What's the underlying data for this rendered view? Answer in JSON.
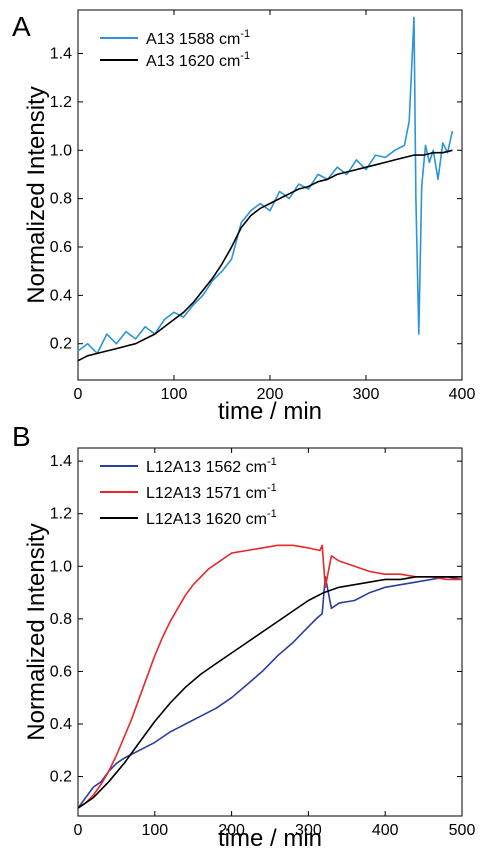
{
  "chart_data": [
    {
      "panel": "A",
      "type": "line",
      "xlabel": "time / min",
      "ylabel": "Normalized Intensity",
      "xlim": [
        0,
        400
      ],
      "ylim": [
        0.05,
        1.58
      ],
      "xticks": [
        0,
        100,
        200,
        300,
        400
      ],
      "yticks": [
        0.2,
        0.4,
        0.6,
        0.8,
        1.0,
        1.2,
        1.4
      ],
      "ytick_labels": [
        "0.2",
        "0.4",
        "0.6",
        "0.8",
        "1.0",
        "1.2",
        "1.4"
      ],
      "legend_placement": "top-left",
      "series": [
        {
          "name": "A13 1588 cm",
          "name_sup": "-1",
          "color": "#2b95d6",
          "x": [
            0,
            10,
            20,
            30,
            40,
            50,
            60,
            70,
            80,
            90,
            100,
            110,
            120,
            130,
            140,
            150,
            160,
            170,
            180,
            190,
            200,
            210,
            220,
            230,
            240,
            250,
            260,
            270,
            280,
            290,
            300,
            310,
            320,
            330,
            340,
            345,
            350,
            352,
            355,
            358,
            362,
            366,
            370,
            375,
            380,
            385,
            390
          ],
          "y": [
            0.17,
            0.2,
            0.16,
            0.24,
            0.2,
            0.25,
            0.22,
            0.27,
            0.24,
            0.3,
            0.33,
            0.31,
            0.36,
            0.4,
            0.46,
            0.5,
            0.55,
            0.7,
            0.75,
            0.78,
            0.75,
            0.83,
            0.8,
            0.86,
            0.84,
            0.9,
            0.88,
            0.93,
            0.9,
            0.96,
            0.92,
            0.98,
            0.97,
            1.0,
            1.02,
            1.12,
            1.55,
            0.8,
            0.24,
            0.85,
            1.02,
            0.95,
            1.0,
            0.88,
            1.03,
            0.99,
            1.08
          ]
        },
        {
          "name": "A13 1620 cm",
          "name_sup": "-1",
          "color": "#000000",
          "x": [
            0,
            10,
            20,
            30,
            40,
            50,
            60,
            70,
            80,
            90,
            100,
            110,
            120,
            130,
            140,
            150,
            160,
            170,
            180,
            190,
            200,
            210,
            220,
            230,
            240,
            250,
            260,
            270,
            280,
            290,
            300,
            310,
            320,
            330,
            340,
            350,
            360,
            370,
            380,
            390
          ],
          "y": [
            0.13,
            0.15,
            0.16,
            0.17,
            0.18,
            0.19,
            0.2,
            0.22,
            0.24,
            0.27,
            0.3,
            0.33,
            0.37,
            0.42,
            0.47,
            0.53,
            0.6,
            0.68,
            0.73,
            0.76,
            0.78,
            0.8,
            0.82,
            0.84,
            0.85,
            0.87,
            0.88,
            0.9,
            0.91,
            0.92,
            0.93,
            0.94,
            0.95,
            0.96,
            0.97,
            0.98,
            0.98,
            0.99,
            0.99,
            1.0
          ]
        }
      ]
    },
    {
      "panel": "B",
      "type": "line",
      "xlabel": "time / min",
      "ylabel": "Normalized Intensity",
      "xlim": [
        0,
        500
      ],
      "ylim": [
        0.05,
        1.45
      ],
      "xticks": [
        0,
        100,
        200,
        300,
        400,
        500
      ],
      "yticks": [
        0.2,
        0.4,
        0.6,
        0.8,
        1.0,
        1.2,
        1.4
      ],
      "ytick_labels": [
        "0.2",
        "0.4",
        "0.6",
        "0.8",
        "1.0",
        "1.2",
        "1.4"
      ],
      "legend_placement": "top-left",
      "series": [
        {
          "name": "L12A13 1562 cm",
          "name_sup": "-1",
          "color": "#2c3e9e",
          "x": [
            0,
            10,
            20,
            30,
            40,
            50,
            60,
            80,
            100,
            120,
            140,
            160,
            180,
            200,
            220,
            240,
            260,
            280,
            300,
            310,
            318,
            322,
            330,
            340,
            360,
            380,
            400,
            420,
            440,
            460,
            480,
            500
          ],
          "y": [
            0.08,
            0.12,
            0.16,
            0.18,
            0.22,
            0.25,
            0.27,
            0.3,
            0.33,
            0.37,
            0.4,
            0.43,
            0.46,
            0.5,
            0.55,
            0.6,
            0.66,
            0.71,
            0.77,
            0.8,
            0.82,
            0.96,
            0.84,
            0.86,
            0.87,
            0.9,
            0.92,
            0.93,
            0.94,
            0.95,
            0.96,
            0.95
          ]
        },
        {
          "name": "L12A13 1571 cm",
          "name_sup": "-1",
          "color": "#e8282b",
          "x": [
            0,
            10,
            20,
            30,
            40,
            50,
            60,
            70,
            80,
            90,
            100,
            110,
            120,
            130,
            140,
            150,
            160,
            170,
            180,
            190,
            200,
            220,
            240,
            260,
            280,
            300,
            315,
            318,
            322,
            330,
            340,
            360,
            380,
            400,
            420,
            440,
            460,
            480,
            500
          ],
          "y": [
            0.08,
            0.1,
            0.13,
            0.17,
            0.22,
            0.28,
            0.35,
            0.42,
            0.5,
            0.58,
            0.66,
            0.73,
            0.79,
            0.84,
            0.89,
            0.93,
            0.96,
            0.99,
            1.01,
            1.03,
            1.05,
            1.06,
            1.07,
            1.08,
            1.08,
            1.07,
            1.06,
            1.08,
            0.92,
            1.04,
            1.02,
            1.0,
            0.98,
            0.97,
            0.97,
            0.96,
            0.96,
            0.95,
            0.95
          ]
        },
        {
          "name": "L12A13 1620 cm",
          "name_sup": "-1",
          "color": "#000000",
          "x": [
            0,
            20,
            40,
            60,
            80,
            100,
            120,
            140,
            160,
            180,
            200,
            220,
            240,
            260,
            280,
            300,
            320,
            340,
            360,
            380,
            400,
            420,
            440,
            460,
            480,
            500
          ],
          "y": [
            0.08,
            0.12,
            0.18,
            0.25,
            0.33,
            0.41,
            0.48,
            0.54,
            0.59,
            0.63,
            0.67,
            0.71,
            0.75,
            0.79,
            0.83,
            0.87,
            0.9,
            0.92,
            0.93,
            0.94,
            0.95,
            0.95,
            0.96,
            0.96,
            0.96,
            0.96
          ]
        }
      ]
    }
  ]
}
